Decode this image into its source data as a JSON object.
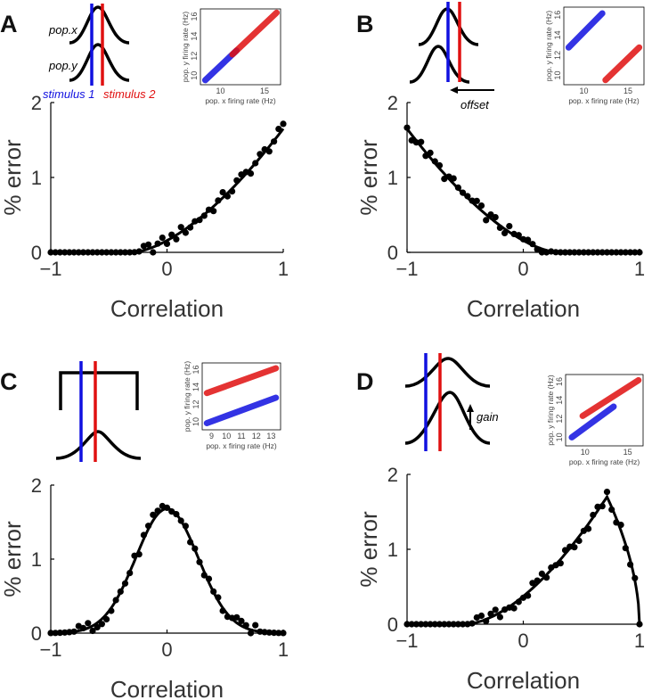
{
  "colors": {
    "stimulus1": "#1010e0",
    "stimulus2": "#e01010",
    "data": "#000000"
  },
  "cartoon": {
    "pop_x": "pop.x",
    "pop_y": "pop.y",
    "stimulus1": "stimulus 1",
    "stimulus2": "stimulus 2",
    "offset": "offset",
    "gain": "gain"
  },
  "chart_data": [
    {
      "panel": "A",
      "type": "scatter+line",
      "xlabel": "Correlation",
      "ylabel": "% error",
      "xlim": [
        -1,
        1
      ],
      "ylim": [
        0,
        2
      ],
      "xticks": [
        "-1",
        "0",
        "1"
      ],
      "yticks": [
        "0",
        "1",
        "2"
      ],
      "curve_shape": "rise-right",
      "inset": {
        "xlabel": "pop. x firing rate (Hz)",
        "ylabel": "pop. y firing rate (Hz)",
        "xticks": [
          "10",
          "15"
        ],
        "yticks": [
          "10",
          "12",
          "14",
          "16"
        ],
        "clusters": "single-diagonal"
      }
    },
    {
      "panel": "B",
      "type": "scatter+line",
      "xlabel": "Correlation",
      "ylabel": "% error",
      "xlim": [
        -1,
        1
      ],
      "ylim": [
        0,
        2
      ],
      "xticks": [
        "-1",
        "0",
        "1"
      ],
      "yticks": [
        "0",
        "1",
        "2"
      ],
      "curve_shape": "fall-left",
      "inset": {
        "xlabel": "pop. x firing rate (Hz)",
        "ylabel": "pop. y firing rate (Hz)",
        "xticks": [
          "10",
          "15"
        ],
        "yticks": [
          "10",
          "12",
          "14",
          "16"
        ],
        "clusters": "offset-diagonal"
      }
    },
    {
      "panel": "C",
      "type": "scatter+line",
      "xlabel": "Correlation",
      "ylabel": "% error",
      "xlim": [
        -1,
        1
      ],
      "ylim": [
        0,
        2
      ],
      "xticks": [
        "-1",
        "0",
        "1"
      ],
      "yticks": [
        "0",
        "1",
        "2"
      ],
      "curve_shape": "bell",
      "inset": {
        "xlabel": "pop. x firing rate (Hz)",
        "ylabel": "pop. y firing rate (Hz)",
        "xticks": [
          "9",
          "10",
          "11",
          "12",
          "13"
        ],
        "yticks": [
          "10",
          "12",
          "14",
          "16"
        ],
        "clusters": "parallel"
      }
    },
    {
      "panel": "D",
      "type": "scatter+line",
      "xlabel": "Correlation",
      "ylabel": "% error",
      "xlim": [
        -1,
        1
      ],
      "ylim": [
        0,
        2
      ],
      "xticks": [
        "-1",
        "0",
        "1"
      ],
      "yticks": [
        "0",
        "1",
        "2"
      ],
      "curve_shape": "skewed-peak",
      "inset": {
        "xlabel": "pop. x firing rate (Hz)",
        "ylabel": "pop. y firing rate (Hz)",
        "xticks": [
          "10",
          "15"
        ],
        "yticks": [
          "10",
          "12",
          "14",
          "16"
        ],
        "clusters": "divergent"
      }
    }
  ]
}
